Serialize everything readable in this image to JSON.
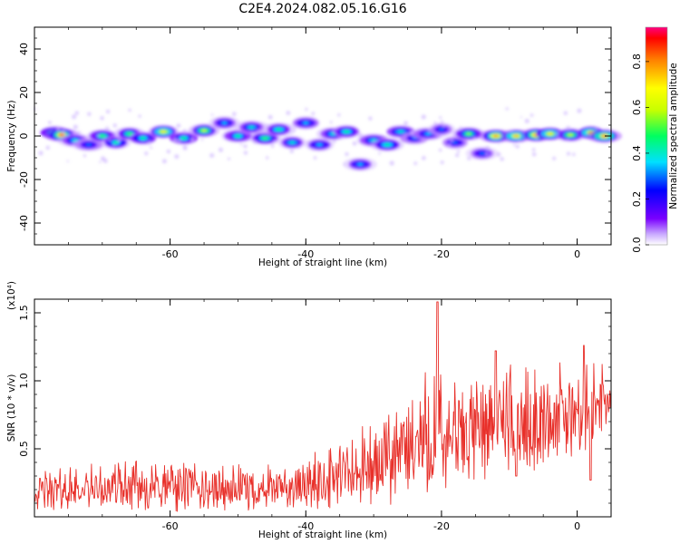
{
  "title": "C2E4.2024.082.05.16.G16",
  "chart_data": [
    {
      "type": "heatmap",
      "xlabel": "Height of straight line (km)",
      "ylabel": "Frequency (Hz)",
      "xlim": [
        -80,
        5
      ],
      "ylim": [
        -50,
        50
      ],
      "xticks": [
        -60,
        -40,
        -20,
        0
      ],
      "yticks": [
        40,
        20,
        0,
        -20,
        -40
      ],
      "colorbar": {
        "label": "Normalized spectral amplitude",
        "range": [
          0,
          0.95
        ],
        "ticks": [
          "0.0",
          "0.2",
          "0.4",
          "0.6",
          "0.8"
        ]
      },
      "blobs": [
        {
          "x": -77.0,
          "y": 1.5,
          "v": 0.55
        },
        {
          "x": -76.0,
          "y": 0.5,
          "v": 0.85
        },
        {
          "x": -74.0,
          "y": -2.0,
          "v": 0.4
        },
        {
          "x": -72.0,
          "y": -4.0,
          "v": 0.3
        },
        {
          "x": -70.0,
          "y": 0.0,
          "v": 0.5
        },
        {
          "x": -68.0,
          "y": -3.0,
          "v": 0.45
        },
        {
          "x": -66.0,
          "y": 1.0,
          "v": 0.5
        },
        {
          "x": -64.0,
          "y": -1.0,
          "v": 0.45
        },
        {
          "x": -61.0,
          "y": 2.0,
          "v": 0.7
        },
        {
          "x": -58.0,
          "y": -1.0,
          "v": 0.45
        },
        {
          "x": -55.0,
          "y": 2.5,
          "v": 0.6
        },
        {
          "x": -52.0,
          "y": 6.0,
          "v": 0.35
        },
        {
          "x": -50.0,
          "y": 0.0,
          "v": 0.45
        },
        {
          "x": -48.0,
          "y": 4.0,
          "v": 0.4
        },
        {
          "x": -46.0,
          "y": -1.0,
          "v": 0.5
        },
        {
          "x": -44.0,
          "y": 3.0,
          "v": 0.45
        },
        {
          "x": -42.0,
          "y": -3.0,
          "v": 0.4
        },
        {
          "x": -40.0,
          "y": 6.0,
          "v": 0.35
        },
        {
          "x": -38.0,
          "y": -4.0,
          "v": 0.35
        },
        {
          "x": -36.0,
          "y": 1.0,
          "v": 0.4
        },
        {
          "x": -34.0,
          "y": 2.0,
          "v": 0.45
        },
        {
          "x": -32.0,
          "y": -13.0,
          "v": 0.35
        },
        {
          "x": -30.0,
          "y": -2.0,
          "v": 0.4
        },
        {
          "x": -28.0,
          "y": -4.0,
          "v": 0.45
        },
        {
          "x": -26.0,
          "y": 2.0,
          "v": 0.4
        },
        {
          "x": -24.0,
          "y": -1.0,
          "v": 0.3
        },
        {
          "x": -22.0,
          "y": 1.0,
          "v": 0.35
        },
        {
          "x": -20.0,
          "y": 3.0,
          "v": 0.3
        },
        {
          "x": -18.0,
          "y": -3.0,
          "v": 0.3
        },
        {
          "x": -16.0,
          "y": 1.0,
          "v": 0.55
        },
        {
          "x": -14.0,
          "y": -8.0,
          "v": 0.3
        },
        {
          "x": -12.0,
          "y": 0.0,
          "v": 0.8
        },
        {
          "x": -9.0,
          "y": 0.0,
          "v": 0.75
        },
        {
          "x": -6.0,
          "y": 0.5,
          "v": 0.85
        },
        {
          "x": -4.0,
          "y": 1.0,
          "v": 0.7
        },
        {
          "x": -1.0,
          "y": 0.5,
          "v": 0.6
        },
        {
          "x": 2.0,
          "y": 1.5,
          "v": 0.75
        },
        {
          "x": 4.0,
          "y": 0.0,
          "v": 0.8
        }
      ]
    },
    {
      "type": "line",
      "xlabel": "Height of straight line (km)",
      "ylabel": "SNR (10 * v/v)",
      "yscale_note": "(x10⁴)",
      "xlim": [
        -80,
        5
      ],
      "ylim": [
        0,
        1.6
      ],
      "xticks": [
        -60,
        -40,
        -20,
        0
      ],
      "yticks": [
        "0.5",
        "1.0",
        "1.5"
      ],
      "color": "#e8302a",
      "envelope": [
        {
          "x": -80.0,
          "lo": 0.05,
          "hi": 0.35
        },
        {
          "x": -70.0,
          "lo": 0.05,
          "hi": 0.4
        },
        {
          "x": -60.0,
          "lo": 0.03,
          "hi": 0.45
        },
        {
          "x": -50.0,
          "lo": 0.03,
          "hi": 0.4
        },
        {
          "x": -42.0,
          "lo": 0.05,
          "hi": 0.4
        },
        {
          "x": -35.0,
          "lo": 0.05,
          "hi": 0.6
        },
        {
          "x": -28.0,
          "lo": 0.05,
          "hi": 0.8
        },
        {
          "x": -24.0,
          "lo": 0.1,
          "hi": 1.1
        },
        {
          "x": -20.0,
          "lo": 0.1,
          "hi": 1.2
        },
        {
          "x": -18.0,
          "lo": 0.2,
          "hi": 1.05
        },
        {
          "x": -12.0,
          "lo": 0.3,
          "hi": 1.2
        },
        {
          "x": -8.0,
          "lo": 0.3,
          "hi": 1.1
        },
        {
          "x": -4.0,
          "lo": 0.4,
          "hi": 1.1
        },
        {
          "x": 0.0,
          "lo": 0.4,
          "hi": 1.25
        },
        {
          "x": 5.0,
          "lo": 0.7,
          "hi": 1.1
        }
      ],
      "peaks": [
        {
          "x": -20.6,
          "y": 1.58
        },
        {
          "x": -12.0,
          "y": 1.22
        },
        {
          "x": -9.0,
          "y": 0.3
        },
        {
          "x": 1.0,
          "y": 1.26
        },
        {
          "x": 2.0,
          "y": 0.27
        }
      ]
    }
  ]
}
